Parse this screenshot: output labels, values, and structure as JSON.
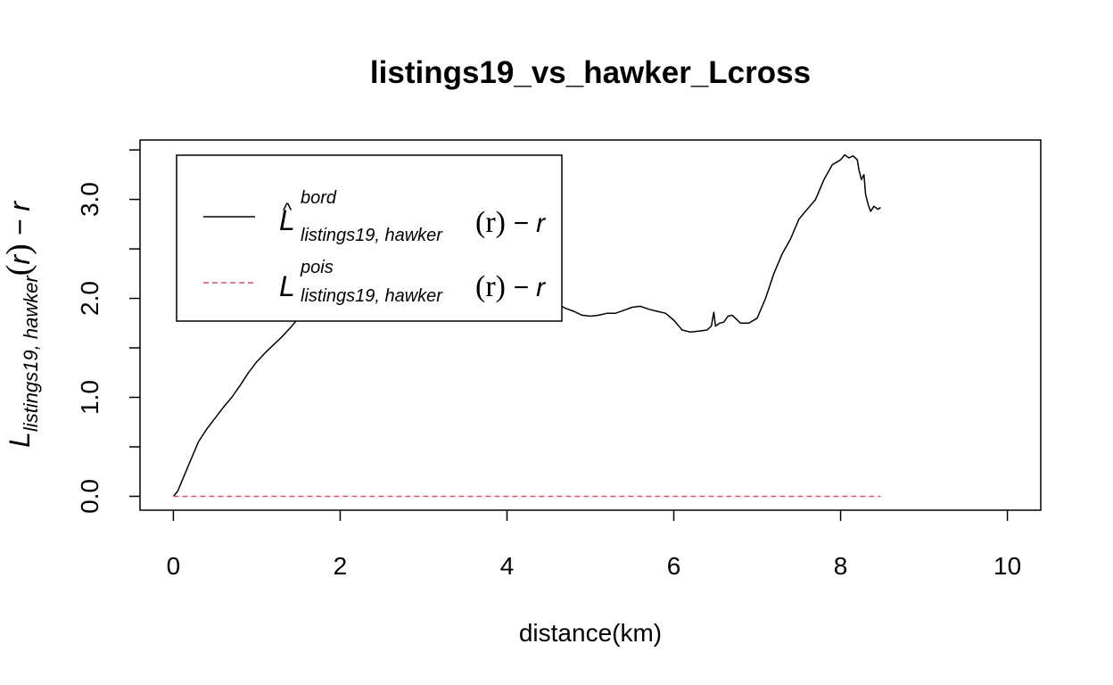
{
  "chart_data": {
    "type": "line",
    "title": "listings19_vs_hawker_Lcross",
    "xlabel": "distance(km)",
    "ylabel": {
      "main": "L",
      "subscript": "listings19, hawker",
      "arg_open": "(",
      "arg": "r",
      "arg_close": ")",
      "tail": " − r"
    },
    "xlim": [
      -0.4,
      10.4
    ],
    "ylim": [
      -0.14,
      3.6
    ],
    "x_ticks": [
      0,
      2,
      4,
      6,
      8,
      10
    ],
    "x_tick_labels": [
      "0",
      "2",
      "4",
      "6",
      "8",
      "10"
    ],
    "y_ticks": [
      0,
      0.5,
      1,
      1.5,
      2,
      2.5,
      3,
      3.5
    ],
    "y_tick_labels": [
      {
        "value": 0,
        "label": "0.0"
      },
      {
        "value": 1,
        "label": "1.0"
      },
      {
        "value": 2,
        "label": "2.0"
      },
      {
        "value": 3,
        "label": "3.0"
      }
    ],
    "grid": false,
    "legend_position": "top-left",
    "legend": [
      {
        "key": "bord",
        "main": "L",
        "hat": "^",
        "superscript": "bord",
        "subscript": "listings19, hawker",
        "arg": "(r)",
        "tail": " − r",
        "color": "#000000",
        "dash": "solid"
      },
      {
        "key": "pois",
        "main": "L",
        "hat": "",
        "superscript": "pois",
        "subscript": "listings19, hawker",
        "arg": "(r)",
        "tail": " − r",
        "color": "#DF536B",
        "dash": "dashed"
      }
    ],
    "series": [
      {
        "key": "bord",
        "color": "#000000",
        "dash": "solid",
        "x": [
          0,
          0.05,
          0.1,
          0.2,
          0.3,
          0.4,
          0.5,
          0.6,
          0.7,
          0.8,
          0.9,
          1.0,
          1.1,
          1.2,
          1.3,
          1.4,
          1.5,
          1.6,
          1.7,
          1.8,
          1.9,
          2.0,
          2.1,
          2.2,
          2.3,
          2.4,
          2.5,
          2.6,
          2.7,
          2.8,
          2.9,
          3.0,
          3.1,
          3.2,
          3.3,
          3.4,
          3.5,
          3.6,
          3.7,
          3.8,
          3.9,
          4.0,
          4.1,
          4.2,
          4.3,
          4.4,
          4.5,
          4.6,
          4.7,
          4.8,
          4.9,
          5.0,
          5.1,
          5.2,
          5.3,
          5.4,
          5.5,
          5.6,
          5.7,
          5.8,
          5.9,
          6.0,
          6.1,
          6.2,
          6.3,
          6.4,
          6.45,
          6.48,
          6.5,
          6.55,
          6.6,
          6.65,
          6.7,
          6.75,
          6.8,
          6.9,
          7.0,
          7.1,
          7.2,
          7.3,
          7.4,
          7.5,
          7.6,
          7.7,
          7.8,
          7.9,
          8.0,
          8.05,
          8.1,
          8.15,
          8.2,
          8.22,
          8.25,
          8.28,
          8.3,
          8.33,
          8.36,
          8.4,
          8.45,
          8.48
        ],
        "y": [
          0.0,
          0.05,
          0.15,
          0.35,
          0.55,
          0.68,
          0.79,
          0.9,
          1.0,
          1.12,
          1.25,
          1.36,
          1.45,
          1.53,
          1.61,
          1.7,
          1.8,
          1.9,
          2.0,
          2.08,
          2.14,
          2.18,
          2.2,
          2.22,
          2.23,
          2.24,
          2.26,
          2.24,
          2.22,
          2.2,
          2.15,
          2.1,
          2.05,
          2.0,
          1.98,
          1.97,
          2.0,
          2.0,
          1.96,
          1.9,
          1.93,
          1.96,
          1.94,
          1.92,
          1.95,
          1.97,
          1.98,
          1.95,
          1.9,
          1.87,
          1.83,
          1.82,
          1.83,
          1.85,
          1.85,
          1.88,
          1.91,
          1.92,
          1.89,
          1.87,
          1.85,
          1.78,
          1.68,
          1.66,
          1.67,
          1.68,
          1.72,
          1.86,
          1.72,
          1.75,
          1.76,
          1.82,
          1.83,
          1.79,
          1.75,
          1.75,
          1.8,
          2.0,
          2.25,
          2.45,
          2.6,
          2.8,
          2.9,
          3.0,
          3.2,
          3.35,
          3.4,
          3.45,
          3.42,
          3.44,
          3.4,
          3.3,
          3.2,
          3.25,
          3.05,
          2.95,
          2.88,
          2.93,
          2.9,
          2.92
        ]
      },
      {
        "key": "pois",
        "color": "#DF536B",
        "dash": "dashed",
        "x": [
          0,
          8.48
        ],
        "y": [
          0,
          0
        ]
      }
    ]
  }
}
